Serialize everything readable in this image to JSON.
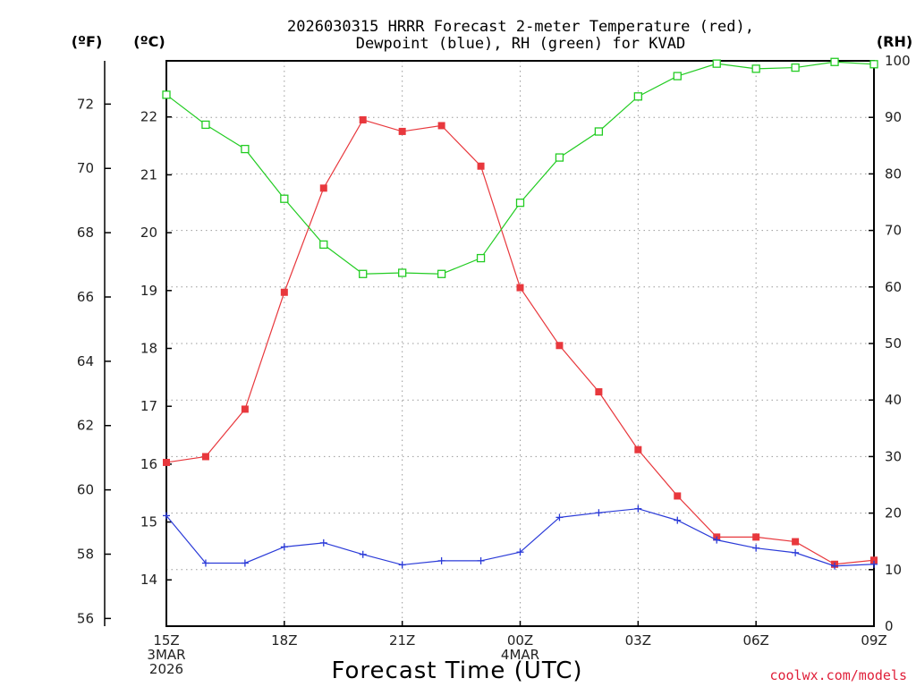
{
  "chart_data": {
    "type": "line",
    "title_lines": [
      "2026030315 HRRR Forecast 2-meter Temperature (red),",
      "Dewpoint (blue), RH (green) for KVAD"
    ],
    "xlabel": "Forecast Time (UTC)",
    "units": {
      "f": "(ºF)",
      "c": "(ºC)",
      "rh": "(RH)"
    },
    "credit": "coolwx.com/models",
    "x_hours": [
      0,
      1,
      2,
      3,
      4,
      5,
      6,
      7,
      8,
      9,
      10,
      11,
      12,
      13,
      14,
      15,
      16,
      17,
      18
    ],
    "x_ticks": [
      {
        "h": 0,
        "lines": [
          "15Z",
          "3MAR",
          "2026"
        ]
      },
      {
        "h": 3,
        "lines": [
          "18Z"
        ]
      },
      {
        "h": 6,
        "lines": [
          "21Z"
        ]
      },
      {
        "h": 9,
        "lines": [
          "00Z",
          "4MAR"
        ]
      },
      {
        "h": 12,
        "lines": [
          "03Z"
        ]
      },
      {
        "h": 15,
        "lines": [
          "06Z"
        ]
      },
      {
        "h": 18,
        "lines": [
          "09Z"
        ]
      }
    ],
    "xlim": [
      0,
      18
    ],
    "left_axis_c": {
      "label": "(ºC)",
      "ticks": [
        14,
        15,
        16,
        17,
        18,
        19,
        20,
        21,
        22
      ]
    },
    "left_axis_f": {
      "label": "(ºF)",
      "ticks": [
        56,
        58,
        60,
        62,
        64,
        66,
        68,
        70,
        72
      ]
    },
    "right_axis_rh": {
      "label": "(RH)",
      "ticks": [
        0,
        10,
        20,
        30,
        40,
        50,
        60,
        70,
        80,
        90,
        100
      ],
      "ylim": [
        0,
        100
      ]
    },
    "ylim_c": [
      13.2,
      22.97
    ],
    "grid": true,
    "series": [
      {
        "name": "Temperature",
        "unit": "C",
        "color": "#e8383d",
        "marker": "filled-square",
        "values": [
          16.03,
          16.13,
          16.95,
          18.97,
          20.77,
          21.95,
          21.75,
          21.85,
          21.15,
          19.05,
          18.05,
          17.25,
          16.25,
          15.45,
          14.74,
          14.74,
          14.66,
          14.27,
          14.34
        ]
      },
      {
        "name": "Dewpoint",
        "unit": "C",
        "color": "#2b3bd8",
        "marker": "plus",
        "values": [
          15.11,
          14.29,
          14.29,
          14.57,
          14.64,
          14.44,
          14.26,
          14.33,
          14.33,
          14.48,
          15.08,
          15.16,
          15.23,
          15.03,
          14.69,
          14.55,
          14.47,
          14.24,
          14.27
        ]
      },
      {
        "name": "RH",
        "unit": "%",
        "color": "#22cc22",
        "marker": "open-square",
        "values": [
          94.0,
          88.7,
          84.4,
          75.6,
          67.5,
          62.3,
          62.5,
          62.3,
          65.1,
          74.9,
          82.9,
          87.5,
          93.7,
          97.3,
          99.5,
          98.6,
          98.8,
          99.8,
          99.4
        ]
      }
    ]
  }
}
